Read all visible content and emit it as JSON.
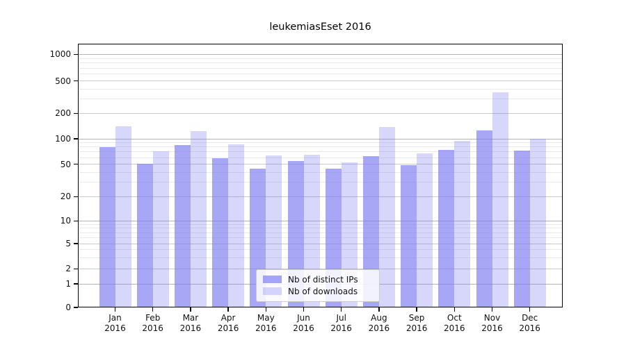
{
  "chart_data": {
    "type": "bar",
    "title": "leukemiasEset 2016",
    "categories": [
      "Jan",
      "Feb",
      "Mar",
      "Apr",
      "May",
      "Jun",
      "Jul",
      "Aug",
      "Sep",
      "Oct",
      "Nov",
      "Dec"
    ],
    "category_year": "2016",
    "series": [
      {
        "name": "Nb of distinct IPs",
        "values": [
          80,
          51,
          84,
          59,
          44,
          55,
          44,
          62,
          49,
          74,
          126,
          73
        ]
      },
      {
        "name": "Nb of downloads",
        "values": [
          140,
          71,
          123,
          86,
          64,
          65,
          53,
          137,
          67,
          95,
          365,
          100
        ]
      }
    ],
    "yticks": [
      0,
      1,
      2,
      5,
      10,
      20,
      50,
      100,
      200,
      500,
      1000
    ],
    "yscale": "log-like with 0 baseline",
    "ylim": [
      0,
      1400
    ],
    "grid": "horizontal major and minor",
    "legend_position": "inside bottom-center"
  },
  "colors": {
    "bar_ips": "rgba(121,121,241,0.66)",
    "bar_downloads": "rgba(121,121,241,0.30)",
    "grid_decade": "#b3b3b3",
    "grid_labeled": "#c9c9c9",
    "grid_minor": "#e9e9e9",
    "axis": "#000000"
  }
}
